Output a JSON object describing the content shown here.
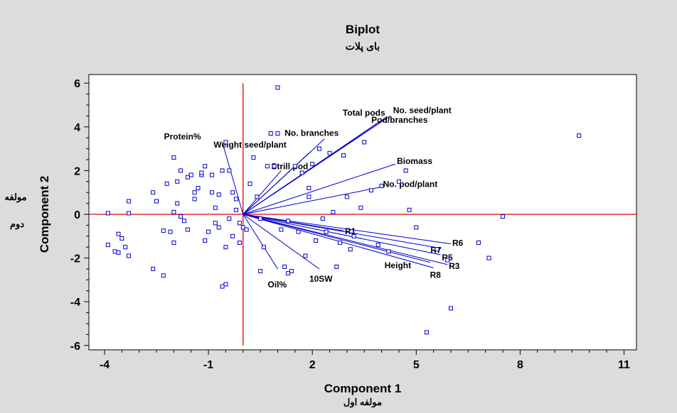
{
  "chart_data": {
    "type": "scatter",
    "title": "Biplot",
    "subtitle": "بای پلات",
    "xlabel": "Component 1",
    "xlabel_sub": "مولفه اول",
    "ylabel": "Component 2",
    "ylabel_sub": [
      "مولفه",
      "دوم"
    ],
    "xlim": [
      -4.2,
      11
    ],
    "ylim": [
      -6.2,
      6.2
    ],
    "xticks": [
      -4,
      -1,
      2,
      5,
      8,
      11
    ],
    "xtick_labels": [
      "-4",
      "-1",
      "2",
      "5",
      "8",
      "11"
    ],
    "yticks": [
      -6,
      -4,
      -2,
      0,
      2,
      4,
      6
    ],
    "ytick_labels": [
      "-6",
      "-4",
      "-2",
      "0",
      "2",
      "4",
      "6"
    ],
    "grid": false,
    "colors": {
      "points": "#0000cc",
      "vectors": "#0000cc",
      "axes_lines": "#e00000",
      "background": "#dcdcdc",
      "plot_bg": "#ffffff"
    },
    "points": [
      {
        "x": -3.9,
        "y": 0.05
      },
      {
        "x": -3.6,
        "y": -0.9
      },
      {
        "x": -3.5,
        "y": -1.1
      },
      {
        "x": -3.7,
        "y": -1.7
      },
      {
        "x": -3.6,
        "y": -1.75
      },
      {
        "x": -3.4,
        "y": -1.5
      },
      {
        "x": -3.3,
        "y": -1.9
      },
      {
        "x": -3.3,
        "y": 0.6
      },
      {
        "x": -3.9,
        "y": -1.4
      },
      {
        "x": -3.3,
        "y": 0.05
      },
      {
        "x": -2.6,
        "y": 1.0
      },
      {
        "x": -2.5,
        "y": 0.6
      },
      {
        "x": -2.6,
        "y": -2.5
      },
      {
        "x": -2.3,
        "y": -2.8
      },
      {
        "x": -2.3,
        "y": -0.75
      },
      {
        "x": -2.0,
        "y": 2.6
      },
      {
        "x": -2.1,
        "y": -0.8
      },
      {
        "x": -2.0,
        "y": -1.3
      },
      {
        "x": -1.9,
        "y": 0.5
      },
      {
        "x": -1.9,
        "y": 1.5
      },
      {
        "x": -1.8,
        "y": -0.1
      },
      {
        "x": -1.8,
        "y": 2.0
      },
      {
        "x": -1.7,
        "y": -0.3
      },
      {
        "x": -1.6,
        "y": -0.7
      },
      {
        "x": -1.6,
        "y": 1.7
      },
      {
        "x": -1.5,
        "y": 1.8
      },
      {
        "x": -1.4,
        "y": 1.0
      },
      {
        "x": -1.3,
        "y": 1.2
      },
      {
        "x": -1.2,
        "y": 1.8
      },
      {
        "x": -1.2,
        "y": 1.9
      },
      {
        "x": -1.1,
        "y": 2.2
      },
      {
        "x": -1.0,
        "y": -0.8
      },
      {
        "x": -0.9,
        "y": 1.8
      },
      {
        "x": -0.9,
        "y": 1.0
      },
      {
        "x": -0.8,
        "y": 0.3
      },
      {
        "x": -0.8,
        "y": -0.4
      },
      {
        "x": -0.7,
        "y": 0.9
      },
      {
        "x": -0.7,
        "y": -0.6
      },
      {
        "x": -0.6,
        "y": 2.0
      },
      {
        "x": -0.5,
        "y": 3.3
      },
      {
        "x": -0.5,
        "y": -1.5
      },
      {
        "x": -0.4,
        "y": 2.0
      },
      {
        "x": -0.4,
        "y": -0.2
      },
      {
        "x": -0.3,
        "y": 1.0
      },
      {
        "x": -0.3,
        "y": -1.0
      },
      {
        "x": -0.2,
        "y": 0.7
      },
      {
        "x": -0.2,
        "y": 0.2
      },
      {
        "x": -0.1,
        "y": -0.4
      },
      {
        "x": -0.1,
        "y": -1.3
      },
      {
        "x": 0.0,
        "y": -0.6
      },
      {
        "x": 0.1,
        "y": -0.7
      },
      {
        "x": 0.2,
        "y": 1.4
      },
      {
        "x": 0.3,
        "y": 2.6
      },
      {
        "x": 0.4,
        "y": 0.8
      },
      {
        "x": 0.5,
        "y": -0.2
      },
      {
        "x": 0.5,
        "y": -2.6
      },
      {
        "x": 0.6,
        "y": -1.5
      },
      {
        "x": 0.7,
        "y": 2.2
      },
      {
        "x": 0.8,
        "y": 3.7
      },
      {
        "x": 0.9,
        "y": 2.2
      },
      {
        "x": 1.0,
        "y": 3.7
      },
      {
        "x": 1.0,
        "y": 5.8
      },
      {
        "x": 1.1,
        "y": -0.7
      },
      {
        "x": 1.2,
        "y": -2.4
      },
      {
        "x": 1.3,
        "y": -0.3
      },
      {
        "x": 1.3,
        "y": -2.7
      },
      {
        "x": 1.4,
        "y": -2.6
      },
      {
        "x": 1.5,
        "y": 2.2
      },
      {
        "x": 1.6,
        "y": -0.8
      },
      {
        "x": 1.7,
        "y": 1.9
      },
      {
        "x": 1.8,
        "y": -1.9
      },
      {
        "x": 1.9,
        "y": 0.8
      },
      {
        "x": 1.9,
        "y": 1.2
      },
      {
        "x": 2.0,
        "y": 2.3
      },
      {
        "x": 2.1,
        "y": -1.2
      },
      {
        "x": 2.2,
        "y": 3.0
      },
      {
        "x": 2.3,
        "y": -0.2
      },
      {
        "x": 2.4,
        "y": -0.8
      },
      {
        "x": 2.5,
        "y": 2.8
      },
      {
        "x": 2.6,
        "y": 0.1
      },
      {
        "x": 2.7,
        "y": -2.4
      },
      {
        "x": 2.8,
        "y": -1.3
      },
      {
        "x": 2.9,
        "y": 2.7
      },
      {
        "x": 3.0,
        "y": 0.8
      },
      {
        "x": 3.1,
        "y": -1.6
      },
      {
        "x": 3.2,
        "y": -1.0
      },
      {
        "x": 3.4,
        "y": 0.3
      },
      {
        "x": 3.5,
        "y": 3.3
      },
      {
        "x": 3.7,
        "y": 1.1
      },
      {
        "x": 3.9,
        "y": -1.4
      },
      {
        "x": 4.0,
        "y": 1.3
      },
      {
        "x": 4.2,
        "y": -1.7
      },
      {
        "x": 4.5,
        "y": 1.5
      },
      {
        "x": 4.7,
        "y": 2.0
      },
      {
        "x": 4.8,
        "y": 0.2
      },
      {
        "x": 5.0,
        "y": -0.6
      },
      {
        "x": 5.3,
        "y": -5.4
      },
      {
        "x": 5.6,
        "y": -1.6
      },
      {
        "x": 5.9,
        "y": -2.1
      },
      {
        "x": 6.0,
        "y": -4.3
      },
      {
        "x": 6.8,
        "y": -1.3
      },
      {
        "x": 7.1,
        "y": -2.0
      },
      {
        "x": 7.5,
        "y": -0.1
      },
      {
        "x": 9.7,
        "y": 3.6
      },
      {
        "x": -0.5,
        "y": -3.2
      },
      {
        "x": -0.6,
        "y": -3.3
      },
      {
        "x": -1.4,
        "y": 0.7
      },
      {
        "x": -2.2,
        "y": 1.4
      },
      {
        "x": -2.0,
        "y": 0.1
      },
      {
        "x": -1.1,
        "y": -1.2
      }
    ],
    "vectors": [
      {
        "label": "No. seed/plant",
        "x": 4.25,
        "y": 4.5,
        "label_dx": 4,
        "label_dy": -4
      },
      {
        "label": "Total pods",
        "x": 4.15,
        "y": 4.45,
        "label_dx": -62,
        "label_dy": -2
      },
      {
        "label": "Pod/branches",
        "x": 3.95,
        "y": 4.25,
        "label_dx": -12,
        "label_dy": 2
      },
      {
        "label": "No. branches",
        "x": 2.35,
        "y": 3.45,
        "label_dx": -56,
        "label_dy": -4
      },
      {
        "label": "Weight seed/plant",
        "x": 1.9,
        "y": 2.8,
        "label_dx": -134,
        "label_dy": -8
      },
      {
        "label": "Strill pod",
        "x": 1.1,
        "y": 2.0,
        "label_dx": -14,
        "label_dy": -2
      },
      {
        "label": "Biomass",
        "x": 4.4,
        "y": 2.3,
        "label_dx": 2,
        "label_dy": 0
      },
      {
        "label": "No. pod/plant",
        "x": 4.0,
        "y": 1.25,
        "label_dx": 2,
        "label_dy": 0
      },
      {
        "label": "Protein%",
        "x": -0.6,
        "y": 3.3,
        "label_dx": -82,
        "label_dy": -4
      },
      {
        "label": "R1",
        "x": 2.9,
        "y": -0.75,
        "label_dx": 2,
        "label_dy": 5
      },
      {
        "label": "R6",
        "x": 6.0,
        "y": -1.35,
        "label_dx": 2,
        "label_dy": 3
      },
      {
        "label": "R7",
        "x": 5.7,
        "y": -1.55,
        "label_dx": -14,
        "label_dy": 7
      },
      {
        "label": "R5",
        "x": 5.7,
        "y": -1.85,
        "label_dx": 2,
        "label_dy": 8
      },
      {
        "label": "R3",
        "x": 5.9,
        "y": -2.3,
        "label_dx": 2,
        "label_dy": 6
      },
      {
        "label": "Height",
        "x": 5.4,
        "y": -2.2,
        "label_dx": -64,
        "label_dy": 8
      },
      {
        "label": "R8",
        "x": 5.5,
        "y": -2.45,
        "label_dx": -5,
        "label_dy": 14
      },
      {
        "label": "10SW",
        "x": 2.2,
        "y": -2.5,
        "label_dx": -14,
        "label_dy": 18
      },
      {
        "label": "Oil%",
        "x": 1.0,
        "y": -2.5,
        "label_dx": -14,
        "label_dy": 26
      }
    ]
  }
}
